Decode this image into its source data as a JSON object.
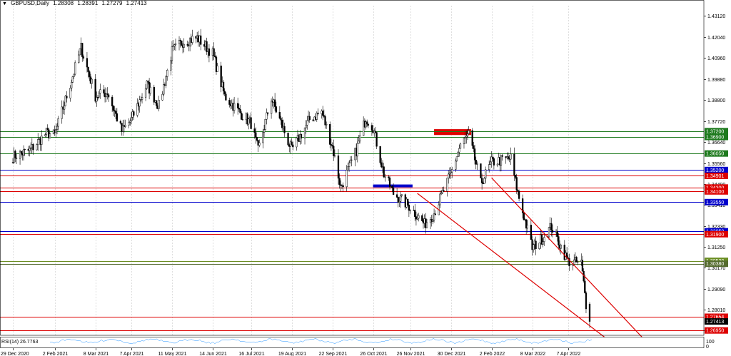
{
  "header": {
    "menu_icon": "triangle-down-icon",
    "symbol": "GBPUSD,Daily",
    "open": "1.28308",
    "high": "1.28391",
    "low": "1.27279",
    "close": "1.27413"
  },
  "indicator": {
    "label": "RSI(14) 26.7763",
    "scale_top": "100",
    "scale_bottom": "0"
  },
  "chart_data": {
    "type": "candlestick",
    "symbol": "GBPUSD",
    "timeframe": "Daily",
    "ylim": [
      1.267,
      1.4365
    ],
    "price_ticks": [
      "1.43120",
      "1.42040",
      "1.40960",
      "1.39880",
      "1.38800",
      "1.37720",
      "1.36640",
      "1.35560",
      "1.34490",
      "1.33410",
      "1.32330",
      "1.31250",
      "1.30170",
      "1.29090",
      "1.28010",
      "1.26950"
    ],
    "date_labels": [
      "29 Dec 2020",
      "2 Feb 2021",
      "8 Mar 2021",
      "7 Apr 2021",
      "11 May 2021",
      "14 Jun 2021",
      "16 Jul 2021",
      "19 Aug 2021",
      "22 Sep 2021",
      "26 Oct 2021",
      "26 Nov 2021",
      "30 Dec 2021",
      "2 Feb 2022",
      "8 Mar 2022",
      "7 Apr 2022"
    ],
    "close_path": [
      [
        "29 Dec 2020",
        1.359
      ],
      [
        "12 Jan 2021",
        1.362
      ],
      [
        "26 Jan 2021",
        1.371
      ],
      [
        "2 Feb 2021",
        1.37
      ],
      [
        "12 Feb 2021",
        1.39
      ],
      [
        "24 Feb 2021",
        1.415
      ],
      [
        "8 Mar 2021",
        1.39
      ],
      [
        "18 Mar 2021",
        1.392
      ],
      [
        "30 Mar 2021",
        1.372
      ],
      [
        "7 Apr 2021",
        1.378
      ],
      [
        "20 Apr 2021",
        1.396
      ],
      [
        "30 Apr 2021",
        1.385
      ],
      [
        "11 May 2021",
        1.413
      ],
      [
        "20 May 2021",
        1.418
      ],
      [
        "1 Jun 2021",
        1.42
      ],
      [
        "14 Jun 2021",
        1.412
      ],
      [
        "24 Jun 2021",
        1.39
      ],
      [
        "6 Jul 2021",
        1.382
      ],
      [
        "16 Jul 2021",
        1.376
      ],
      [
        "22 Jul 2021",
        1.362
      ],
      [
        "2 Aug 2021",
        1.389
      ],
      [
        "19 Aug 2021",
        1.362
      ],
      [
        "3 Sep 2021",
        1.378
      ],
      [
        "13 Sep 2021",
        1.382
      ],
      [
        "22 Sep 2021",
        1.364
      ],
      [
        "29 Sep 2021",
        1.343
      ],
      [
        "12 Oct 2021",
        1.362
      ],
      [
        "20 Oct 2021",
        1.379
      ],
      [
        "26 Oct 2021",
        1.374
      ],
      [
        "4 Nov 2021",
        1.35
      ],
      [
        "12 Nov 2021",
        1.34
      ],
      [
        "26 Nov 2021",
        1.333
      ],
      [
        "8 Dec 2021",
        1.324
      ],
      [
        "16 Dec 2021",
        1.33
      ],
      [
        "30 Dec 2021",
        1.35
      ],
      [
        "7 Jan 2022",
        1.365
      ],
      [
        "14 Jan 2022",
        1.37
      ],
      [
        "24 Jan 2022",
        1.345
      ],
      [
        "2 Feb 2022",
        1.356
      ],
      [
        "10 Feb 2022",
        1.357
      ],
      [
        "18 Feb 2022",
        1.358
      ],
      [
        "24 Feb 2022",
        1.34
      ],
      [
        "8 Mar 2022",
        1.312
      ],
      [
        "18 Mar 2022",
        1.318
      ],
      [
        "24 Mar 2022",
        1.323
      ],
      [
        "7 Apr 2022",
        1.305
      ],
      [
        "18 Apr 2022",
        1.304
      ],
      [
        "22 Apr 2022",
        1.283
      ],
      [
        "25 Apr 2022",
        1.2741
      ]
    ],
    "levels": [
      {
        "price": 1.372,
        "label": "1.37200",
        "color": "#1e7a1e"
      },
      {
        "price": 1.369,
        "label": "1.36900",
        "color": "#1e7a1e"
      },
      {
        "price": 1.3605,
        "label": "1.36050",
        "color": "#1e7a1e"
      },
      {
        "price": 1.352,
        "label": "1.35200",
        "color": "#0000cc"
      },
      {
        "price": 1.34901,
        "label": "1.34901",
        "color": "#dd0000"
      },
      {
        "price": 1.343,
        "label": "1.34300",
        "color": "#dd0000"
      },
      {
        "price": 1.341,
        "label": "1.34100",
        "color": "#dd0000"
      },
      {
        "price": 1.3355,
        "label": "1.33550",
        "color": "#0000cc"
      },
      {
        "price": 1.3205,
        "label": "1.32050",
        "color": "#0000cc"
      },
      {
        "price": 1.319,
        "label": "1.31900",
        "color": "#dd0000"
      },
      {
        "price": 1.3053,
        "label": "1.30530",
        "color": "#6b8e23"
      },
      {
        "price": 1.3038,
        "label": "1.30380",
        "color": "#556b2f"
      },
      {
        "price": 1.27654,
        "label": "1.27654",
        "color": "#dd0000"
      },
      {
        "price": 1.27413,
        "label": "1.27413",
        "color": "#000000"
      },
      {
        "price": 1.2695,
        "label": "1.26950",
        "color": "#dd0000"
      }
    ],
    "channel": {
      "upper": [
        [
          "2 Feb 2022",
          1.348
        ],
        [
          "14 Jun 2022",
          1.262
        ]
      ],
      "lower": [
        [
          "2 Dec 2021",
          1.34
        ],
        [
          "16 May 2022",
          1.262
        ]
      ],
      "color": "#dd0000"
    },
    "zones": [
      {
        "from": "16 Dec 2021",
        "to": "16 Jan 2022",
        "low": 1.37,
        "high": 1.373,
        "color": "#dd0000"
      },
      {
        "from": "26 Oct 2021",
        "to": "28 Nov 2021",
        "low": 1.3435,
        "high": 1.3442,
        "color": "#0000cc"
      }
    ],
    "grid": true
  },
  "colors": {
    "background": "#ffffff",
    "candle": "#000000",
    "grid": "#d0d0d0",
    "axis_text": "#000000",
    "rsi_line": "#1e90ff"
  }
}
